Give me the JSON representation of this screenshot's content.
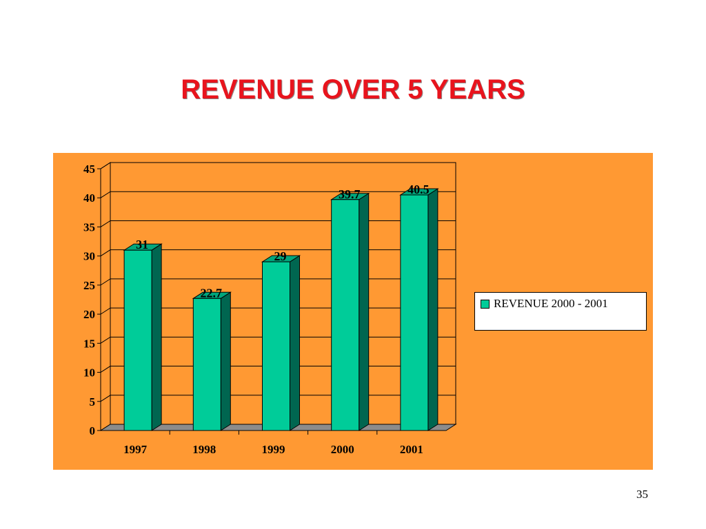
{
  "slide": {
    "title": "REVENUE OVER 5 YEARS",
    "number": "35"
  },
  "colors": {
    "title": "#e8141d",
    "panel_background": "#ff9933",
    "bar_front": "#00cc99",
    "bar_side": "#006650",
    "bar_top": "#00a67c",
    "floor": "#8c8c8c"
  },
  "chart_data": {
    "type": "bar",
    "categories": [
      "1997",
      "1998",
      "1999",
      "2000",
      "2001"
    ],
    "values": [
      31,
      22.7,
      29,
      39.7,
      40.5
    ],
    "data_labels": [
      "31",
      "22.7",
      "29",
      "39.7",
      "40.5"
    ],
    "series": [
      {
        "name": "REVENUE        2000 - 2001",
        "values": [
          31,
          22.7,
          29,
          39.7,
          40.5
        ]
      }
    ],
    "title": "",
    "xlabel": "",
    "ylabel": "",
    "ylim": [
      0,
      45
    ],
    "yticks": [
      "0",
      "5",
      "10",
      "15",
      "20",
      "25",
      "30",
      "35",
      "40",
      "45"
    ],
    "grid": true,
    "legend_position": "right",
    "style": "3d-column"
  }
}
